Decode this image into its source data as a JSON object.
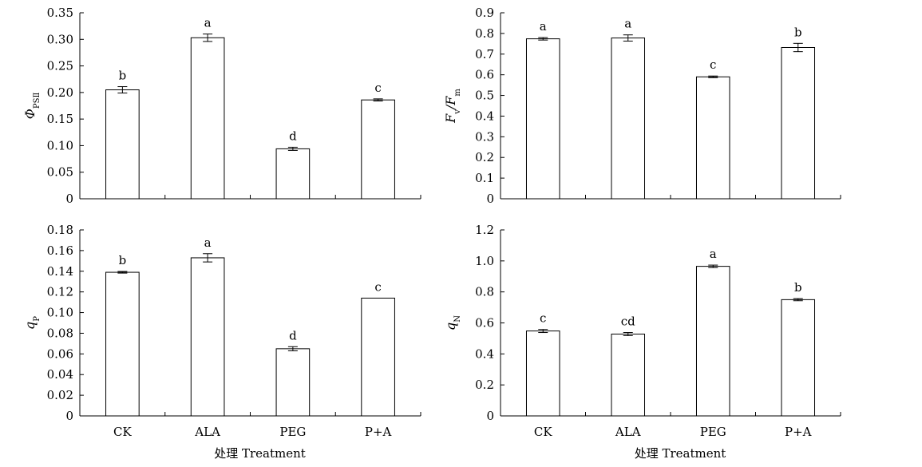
{
  "chart_data": [
    {
      "type": "bar",
      "ylabel": "Φ",
      "ylabel_sub": "PSⅡ",
      "ylabel_italic": true,
      "xlabel": "",
      "categories": [
        "CK",
        "ALA",
        "PEG",
        "P+A"
      ],
      "show_tick_labels": false,
      "values": [
        0.205,
        0.303,
        0.094,
        0.186
      ],
      "errors": [
        0.006,
        0.007,
        0.003,
        0.002
      ],
      "letters": [
        "b",
        "a",
        "d",
        "c"
      ],
      "ylim": [
        0,
        0.35
      ],
      "yticks": [
        "0",
        "0.05",
        "0.10",
        "0.15",
        "0.20",
        "0.25",
        "0.30",
        "0.35"
      ],
      "yticks_values": [
        0,
        0.05,
        0.1,
        0.15,
        0.2,
        0.25,
        0.3,
        0.35
      ]
    },
    {
      "type": "bar",
      "ylabel": "F",
      "ylabel_sub": "v",
      "ylabel2": "/F",
      "ylabel2_sub": "m",
      "ylabel_italic": true,
      "xlabel": "",
      "categories": [
        "CK",
        "ALA",
        "PEG",
        "P+A"
      ],
      "show_tick_labels": false,
      "values": [
        0.774,
        0.778,
        0.59,
        0.732
      ],
      "errors": [
        0.006,
        0.015,
        0.004,
        0.02
      ],
      "letters": [
        "a",
        "a",
        "c",
        "b"
      ],
      "ylim": [
        0,
        0.9
      ],
      "yticks": [
        "0",
        "0.1",
        "0.2",
        "0.3",
        "0.4",
        "0.5",
        "0.6",
        "0.7",
        "0.8",
        "0.9"
      ],
      "yticks_values": [
        0,
        0.1,
        0.2,
        0.3,
        0.4,
        0.5,
        0.6,
        0.7,
        0.8,
        0.9
      ]
    },
    {
      "type": "bar",
      "ylabel": "q",
      "ylabel_sub": "P",
      "ylabel_italic": true,
      "xlabel": "处理 Treatment",
      "categories": [
        "CK",
        "ALA",
        "PEG",
        "P+A"
      ],
      "show_tick_labels": true,
      "values": [
        0.139,
        0.153,
        0.065,
        0.114
      ],
      "errors": [
        0.0008,
        0.004,
        0.002,
        0.0
      ],
      "letters": [
        "b",
        "a",
        "d",
        "c"
      ],
      "ylim": [
        0,
        0.18
      ],
      "yticks": [
        "0",
        "0.02",
        "0.04",
        "0.06",
        "0.08",
        "0.10",
        "0.12",
        "0.14",
        "0.16",
        "0.18"
      ],
      "yticks_values": [
        0,
        0.02,
        0.04,
        0.06,
        0.08,
        0.1,
        0.12,
        0.14,
        0.16,
        0.18
      ]
    },
    {
      "type": "bar",
      "ylabel": "q",
      "ylabel_sub": "N",
      "ylabel_italic": true,
      "xlabel": "处理 Treatment",
      "categories": [
        "CK",
        "ALA",
        "PEG",
        "P+A"
      ],
      "show_tick_labels": true,
      "values": [
        0.548,
        0.528,
        0.965,
        0.75
      ],
      "errors": [
        0.01,
        0.01,
        0.008,
        0.007
      ],
      "letters": [
        "c",
        "cd",
        "a",
        "b"
      ],
      "ylim": [
        0,
        1.2
      ],
      "yticks": [
        "0",
        "0.2",
        "0.4",
        "0.6",
        "0.8",
        "1.0",
        "1.2"
      ],
      "yticks_values": [
        0,
        0.2,
        0.4,
        0.6,
        0.8,
        1.0,
        1.2
      ]
    }
  ]
}
